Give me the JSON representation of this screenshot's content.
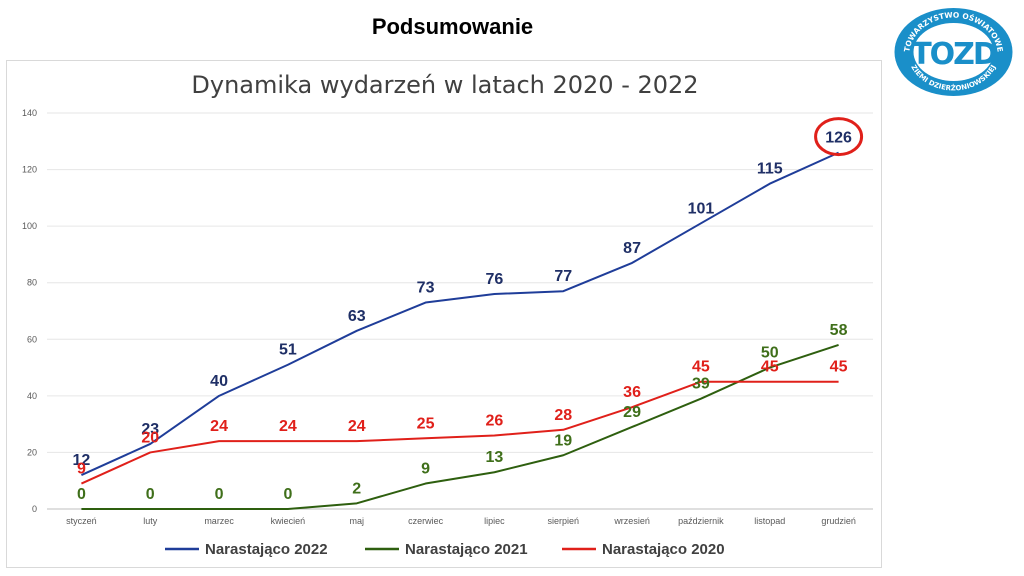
{
  "slide": {
    "title": "Podsumowanie"
  },
  "logo": {
    "text_top": "TOWARZYSTWO OŚWIATOWE",
    "text_bottom": "ZIEMI DZIERŻONIOWSKIEJ",
    "monogram": "TOZD",
    "color": "#1a8fc9"
  },
  "chart_data": {
    "type": "line",
    "title": "Dynamika wydarzeń w latach 2020 - 2022",
    "xlabel": "",
    "ylabel": "",
    "ylim": [
      0,
      140
    ],
    "yticks": [
      0,
      20,
      40,
      60,
      80,
      100,
      120,
      140
    ],
    "grid": true,
    "legend": "bottom",
    "categories": [
      "styczeń",
      "luty",
      "marzec",
      "kwiecień",
      "maj",
      "czerwiec",
      "lipiec",
      "sierpień",
      "wrzesień",
      "październik",
      "listopad",
      "grudzień"
    ],
    "series": [
      {
        "name": "Narastająco 2022",
        "color": "#1f3d99",
        "label_color": "#1f2f66",
        "values": [
          12,
          23,
          40,
          51,
          63,
          73,
          76,
          77,
          87,
          101,
          115,
          126
        ]
      },
      {
        "name": "Narastająco 2021",
        "color": "#2e5f0f",
        "label_color": "#3f6f1a",
        "values": [
          0,
          0,
          0,
          0,
          2,
          9,
          13,
          19,
          29,
          39,
          50,
          58
        ]
      },
      {
        "name": "Narastająco 2020",
        "color": "#e0201a",
        "label_color": "#e0201a",
        "values": [
          9,
          20,
          24,
          24,
          24,
          25,
          26,
          28,
          36,
          45,
          45,
          45
        ]
      }
    ],
    "annotations": [
      {
        "type": "circle",
        "series": "Narastająco 2022",
        "category": "grudzień",
        "value": 126,
        "color": "#e0201a"
      }
    ]
  }
}
